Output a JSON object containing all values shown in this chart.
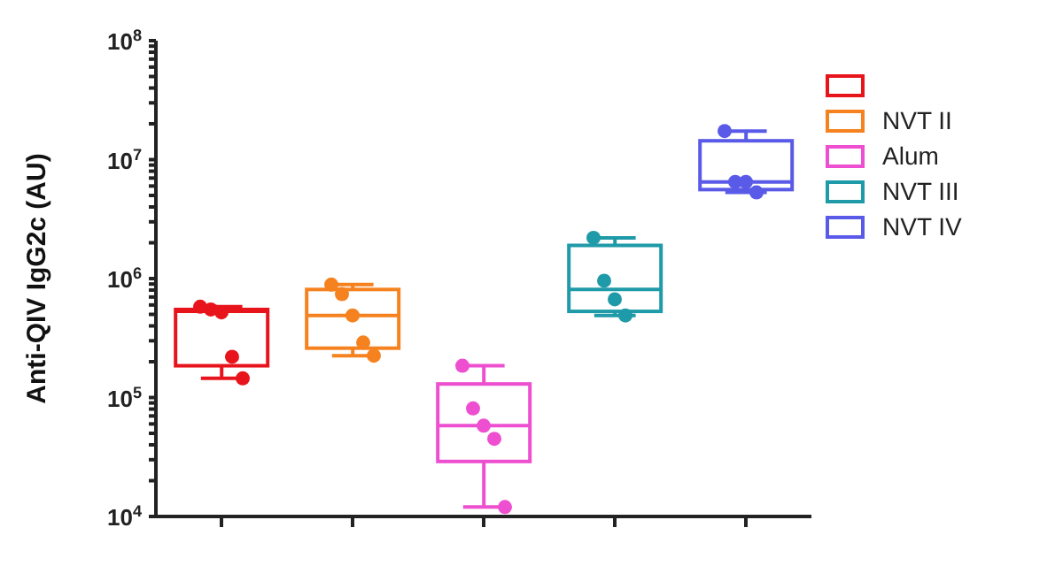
{
  "chart_data": {
    "type": "box",
    "ylabel": "Anti-QIV IgG2c (AU)",
    "categories": [
      null,
      null,
      null,
      null,
      null
    ],
    "log": "y",
    "ylim": [
      10000,
      100000000
    ],
    "yticks": [
      {
        "value": 10000,
        "label": "10$^{4}$"
      },
      {
        "value": 20000,
        "label": null
      },
      {
        "value": 30000,
        "label": null
      },
      {
        "value": 40000,
        "label": null
      },
      {
        "value": 50000,
        "label": null
      },
      {
        "value": 60000,
        "label": null
      },
      {
        "value": 70000,
        "label": null
      },
      {
        "value": 80000,
        "label": null
      },
      {
        "value": 90000,
        "label": null
      },
      {
        "value": 100000,
        "label": "10$^{5}$"
      },
      {
        "value": 200000,
        "label": null
      },
      {
        "value": 300000,
        "label": null
      },
      {
        "value": 400000,
        "label": null
      },
      {
        "value": 500000,
        "label": null
      },
      {
        "value": 600000,
        "label": null
      },
      {
        "value": 700000,
        "label": null
      },
      {
        "value": 800000,
        "label": null
      },
      {
        "value": 900000,
        "label": null
      },
      {
        "value": 1000000,
        "label": "10$^{6}$"
      },
      {
        "value": 2000000,
        "label": null
      },
      {
        "value": 3000000,
        "label": null
      },
      {
        "value": 4000000,
        "label": null
      },
      {
        "value": 5000000,
        "label": null
      },
      {
        "value": 6000000,
        "label": null
      },
      {
        "value": 7000000,
        "label": null
      },
      {
        "value": 8000000,
        "label": null
      },
      {
        "value": 9000000,
        "label": null
      },
      {
        "value": 10000000,
        "label": "10$^{7}$"
      },
      {
        "value": 20000000,
        "label": null
      },
      {
        "value": 30000000,
        "label": null
      },
      {
        "value": 40000000,
        "label": null
      },
      {
        "value": 50000000,
        "label": null
      },
      {
        "value": 60000000,
        "label": null
      },
      {
        "value": 70000000,
        "label": null
      },
      {
        "value": 80000000,
        "label": null
      },
      {
        "value": 90000000,
        "label": null
      },
      {
        "value": 100000000,
        "label": "10$^{8}$"
      }
    ],
    "tick_labels": "y",
    "grid": false,
    "legend": "top right",
    "marker": "circle",
    "series": [
      {
        "type": "box",
        "color": "#e8141c",
        "boxes": [
          {
            "low": 145000,
            "q1": 185000,
            "median": 530000,
            "q3": 550000,
            "high": 580000
          },
          null,
          null,
          null,
          null
        ]
      },
      {
        "type": "box",
        "name": "NVT II",
        "color": "#f5821f",
        "boxes": [
          null,
          {
            "low": 225000,
            "q1": 260000,
            "median": 490000,
            "q3": 810000,
            "high": 890000
          },
          null,
          null,
          null
        ]
      },
      {
        "type": "box",
        "name": "Alum",
        "color": "#ee4fd0",
        "boxes": [
          null,
          null,
          {
            "low": 12000,
            "q1": 29000,
            "median": 58000,
            "q3": 130000,
            "high": 185000
          },
          null,
          null
        ]
      },
      {
        "type": "box",
        "name": "NVT III",
        "color": "#1f9aa8",
        "boxes": [
          null,
          null,
          null,
          {
            "low": 490000,
            "q1": 530000,
            "median": 810000,
            "q3": 1900000,
            "high": 2200000
          },
          null
        ]
      },
      {
        "type": "box",
        "name": "NVT IV",
        "color": "#5a5ae8",
        "boxes": [
          null,
          null,
          null,
          null,
          {
            "low": 5300000,
            "q1": 5600000,
            "median": 6500000,
            "q3": 14400000,
            "high": 17400000
          }
        ]
      },
      {
        "type": "scatter",
        "colors": [
          "#e8141c",
          "#f5821f",
          "#ee4fd0",
          "#1f9aa8",
          "#5a5ae8"
        ],
        "values": [
          580000,
          890000,
          185000,
          2200000,
          17400000
        ]
      },
      {
        "type": "scatter",
        "colors": [
          "#e8141c",
          "#f5821f",
          "#ee4fd0",
          "#1f9aa8",
          "#5a5ae8"
        ],
        "values": [
          550000,
          740000,
          81000,
          960000,
          6500000
        ]
      },
      {
        "type": "scatter",
        "colors": [
          "#e8141c",
          "#f5821f",
          "#ee4fd0",
          "#1f9aa8",
          "#5a5ae8"
        ],
        "values": [
          520000,
          490000,
          58000,
          670000,
          6500000
        ]
      },
      {
        "type": "scatter",
        "colors": [
          "#e8141c",
          "#f5821f",
          "#ee4fd0",
          "#1f9aa8",
          "#5a5ae8"
        ],
        "values": [
          220000,
          290000,
          45000,
          490000,
          5300000
        ]
      },
      {
        "type": "scatter",
        "colors": [
          "#e8141c",
          "#f5821f",
          "#ee4fd0",
          null,
          null
        ],
        "values": [
          145000,
          225000,
          12000,
          null,
          null
        ]
      }
    ]
  }
}
